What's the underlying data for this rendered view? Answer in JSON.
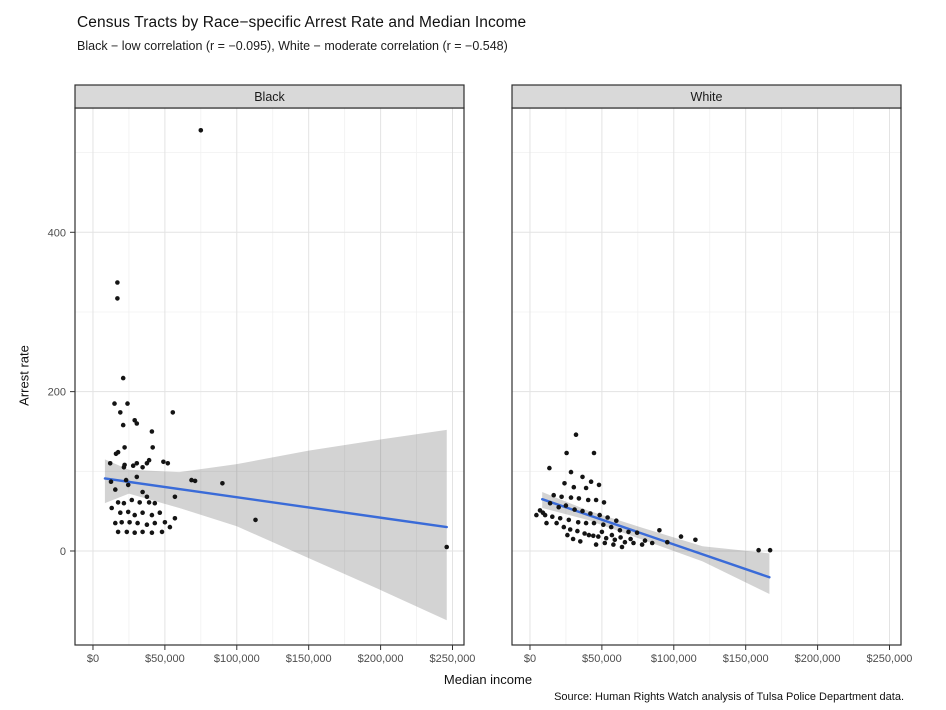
{
  "chart_data": {
    "type": "scatter",
    "title": "Census Tracts by Race−specific Arrest Rate and Median Income",
    "subtitle": "Black − low correlation (r = −0.095), White − moderate correlation (r = −0.548)",
    "caption": "Source: Human Rights Watch analysis of Tulsa Police Department data.",
    "xlabel": "Median income",
    "ylabel": "Arrest rate",
    "x_range": [
      -12500,
      258000
    ],
    "y_range": [
      -118,
      556
    ],
    "x_ticks": [
      {
        "value": 0,
        "label": "$0"
      },
      {
        "value": 50000,
        "label": "$50,000"
      },
      {
        "value": 100000,
        "label": "$100,000"
      },
      {
        "value": 150000,
        "label": "$150,000"
      },
      {
        "value": 200000,
        "label": "$200,000"
      },
      {
        "value": 250000,
        "label": "$250,000"
      }
    ],
    "x_minor": [
      25000,
      75000,
      125000,
      175000,
      225000
    ],
    "y_ticks": [
      {
        "value": 0,
        "label": "0"
      },
      {
        "value": 200,
        "label": "200"
      },
      {
        "value": 400,
        "label": "400"
      }
    ],
    "y_minor": [
      100,
      300,
      500
    ],
    "grid": true,
    "legend": "none",
    "colors": {
      "point": "#141414",
      "trend": "#3A6BD8",
      "ribbon": "rgba(70,70,70,0.24)",
      "strip_bg": "#d9d9d9",
      "strip_text": "#1a1a1a",
      "panel_bg": "#ffffff",
      "panel_border": "#2f2f2f",
      "grid_major": "#e3e3e3",
      "grid_minor": "#f1f1f1",
      "tick_text": "#4d4d4d",
      "tick_mark": "#333333"
    },
    "facets": [
      {
        "label": "Black",
        "points": [
          [
            75000,
            528
          ],
          [
            17000,
            337
          ],
          [
            17000,
            317
          ],
          [
            21000,
            217
          ],
          [
            15000,
            185
          ],
          [
            24000,
            185
          ],
          [
            19000,
            174
          ],
          [
            55500,
            174
          ],
          [
            21000,
            158
          ],
          [
            29000,
            164
          ],
          [
            30500,
            160
          ],
          [
            41000,
            150
          ],
          [
            22000,
            130
          ],
          [
            17500,
            124
          ],
          [
            16000,
            122
          ],
          [
            41500,
            130
          ],
          [
            21500,
            105
          ],
          [
            28000,
            107
          ],
          [
            34500,
            105
          ],
          [
            37500,
            110
          ],
          [
            49000,
            112
          ],
          [
            52000,
            110
          ],
          [
            12000,
            110
          ],
          [
            22000,
            108
          ],
          [
            30500,
            110
          ],
          [
            39000,
            114
          ],
          [
            12500,
            87
          ],
          [
            15500,
            77
          ],
          [
            23000,
            89
          ],
          [
            24500,
            83
          ],
          [
            30500,
            93
          ],
          [
            34500,
            74
          ],
          [
            37500,
            68
          ],
          [
            17500,
            61
          ],
          [
            21500,
            60
          ],
          [
            27000,
            64
          ],
          [
            32500,
            61
          ],
          [
            39000,
            61
          ],
          [
            43000,
            60
          ],
          [
            13000,
            54
          ],
          [
            19000,
            48
          ],
          [
            24500,
            49
          ],
          [
            29000,
            45
          ],
          [
            34500,
            48
          ],
          [
            41000,
            45
          ],
          [
            46500,
            48
          ],
          [
            15500,
            35
          ],
          [
            20000,
            36
          ],
          [
            25500,
            36
          ],
          [
            31000,
            35
          ],
          [
            37500,
            33
          ],
          [
            43000,
            35
          ],
          [
            50000,
            36
          ],
          [
            17500,
            24
          ],
          [
            23500,
            24
          ],
          [
            29000,
            23
          ],
          [
            34500,
            24
          ],
          [
            41000,
            23
          ],
          [
            48000,
            24
          ],
          [
            53500,
            30
          ],
          [
            57000,
            41
          ],
          [
            68500,
            89
          ],
          [
            57000,
            68
          ],
          [
            71000,
            88
          ],
          [
            90000,
            85
          ],
          [
            113000,
            39
          ],
          [
            246000,
            5
          ]
        ],
        "trend": [
          [
            8300,
            91
          ],
          [
            246000,
            30
          ]
        ],
        "ribbon": [
          [
            8300,
            60,
            115
          ],
          [
            25000,
            72,
            102
          ],
          [
            60000,
            54,
            99
          ],
          [
            100000,
            31,
            109
          ],
          [
            150000,
            -9,
            126
          ],
          [
            200000,
            -49,
            140
          ],
          [
            246000,
            -87,
            152
          ]
        ]
      },
      {
        "label": "White",
        "points": [
          [
            32000,
            146
          ],
          [
            25500,
            123
          ],
          [
            44500,
            123
          ],
          [
            13500,
            104
          ],
          [
            28500,
            99
          ],
          [
            36500,
            93
          ],
          [
            42500,
            87
          ],
          [
            24000,
            85
          ],
          [
            30500,
            80
          ],
          [
            39000,
            79
          ],
          [
            48000,
            83
          ],
          [
            16500,
            70
          ],
          [
            22000,
            68
          ],
          [
            28500,
            67
          ],
          [
            34000,
            66
          ],
          [
            40500,
            64
          ],
          [
            46000,
            64
          ],
          [
            51500,
            61
          ],
          [
            7000,
            51
          ],
          [
            10500,
            45
          ],
          [
            15500,
            43
          ],
          [
            21000,
            41
          ],
          [
            27000,
            39
          ],
          [
            33500,
            36
          ],
          [
            39000,
            35
          ],
          [
            44500,
            35
          ],
          [
            51000,
            33
          ],
          [
            56500,
            30
          ],
          [
            62500,
            26
          ],
          [
            68500,
            24
          ],
          [
            74500,
            23
          ],
          [
            41000,
            20
          ],
          [
            47500,
            18
          ],
          [
            53000,
            16
          ],
          [
            59000,
            14
          ],
          [
            66000,
            11
          ],
          [
            72000,
            10
          ],
          [
            78000,
            8
          ],
          [
            90000,
            26
          ],
          [
            105000,
            18
          ],
          [
            115000,
            14
          ],
          [
            95500,
            11
          ],
          [
            159000,
            1
          ],
          [
            167000,
            1
          ],
          [
            20000,
            55
          ],
          [
            25000,
            57
          ],
          [
            31000,
            52
          ],
          [
            36500,
            50
          ],
          [
            42000,
            47
          ],
          [
            48500,
            45
          ],
          [
            54000,
            42
          ],
          [
            60000,
            38
          ],
          [
            14000,
            60
          ],
          [
            18500,
            35
          ],
          [
            23500,
            30
          ],
          [
            28000,
            27
          ],
          [
            33000,
            25
          ],
          [
            38000,
            22
          ],
          [
            44000,
            19
          ],
          [
            50000,
            24
          ],
          [
            57000,
            20
          ],
          [
            63000,
            17
          ],
          [
            70000,
            15
          ],
          [
            80000,
            13
          ],
          [
            85000,
            10
          ],
          [
            58000,
            8
          ],
          [
            64000,
            5
          ],
          [
            52000,
            10
          ],
          [
            46000,
            8
          ],
          [
            35000,
            12
          ],
          [
            30000,
            15
          ],
          [
            26000,
            20
          ],
          [
            9000,
            48
          ],
          [
            4500,
            45
          ],
          [
            11500,
            35
          ]
        ],
        "trend": [
          [
            8500,
            65
          ],
          [
            166500,
            -33
          ]
        ],
        "ribbon": [
          [
            8500,
            54,
            74
          ],
          [
            40000,
            39,
            51
          ],
          [
            80000,
            13,
            28
          ],
          [
            120000,
            -13,
            6
          ],
          [
            166500,
            -54,
            -3
          ]
        ]
      }
    ]
  }
}
